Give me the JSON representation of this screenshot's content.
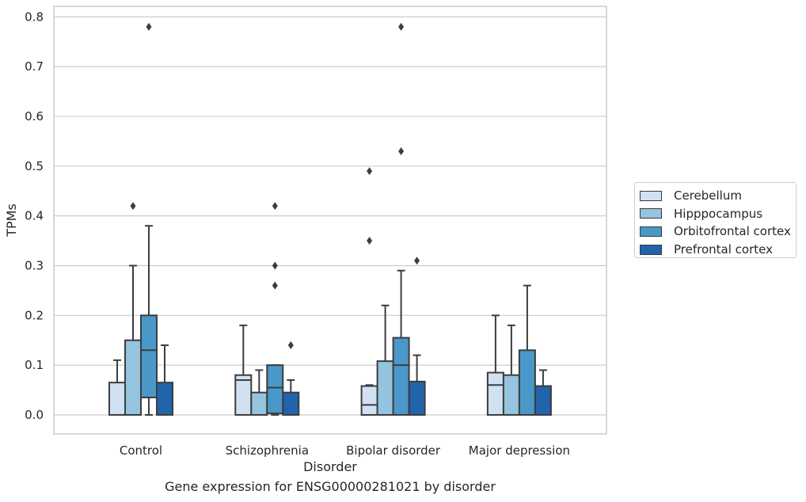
{
  "chart_data": {
    "type": "box",
    "caption": "Gene expression for ENSG00000281021 by disorder",
    "xlabel": "Disorder",
    "ylabel": "TPMs",
    "ylim": [
      -0.038,
      0.82
    ],
    "yticks": [
      0.0,
      0.1,
      0.2,
      0.3,
      0.4,
      0.5,
      0.6,
      0.7,
      0.8
    ],
    "ytick_labels": [
      "0.0",
      "0.1",
      "0.2",
      "0.3",
      "0.4",
      "0.5",
      "0.6",
      "0.7",
      "0.8"
    ],
    "grid": true,
    "legend_position": "right",
    "categories": [
      "Control",
      "Schizophrenia",
      "Bipolar disorder",
      "Major depression"
    ],
    "series": [
      {
        "name": "Cerebellum",
        "color": "#d0e1f2",
        "boxes": [
          {
            "whislo": 0.0,
            "q1": 0.0,
            "med": 0.0,
            "q3": 0.065,
            "whishi": 0.11,
            "fliers": []
          },
          {
            "whislo": 0.0,
            "q1": 0.0,
            "med": 0.07,
            "q3": 0.08,
            "whishi": 0.18,
            "fliers": []
          },
          {
            "whislo": 0.0,
            "q1": 0.0,
            "med": 0.02,
            "q3": 0.058,
            "whishi": 0.06,
            "fliers": [
              0.35,
              0.49
            ]
          },
          {
            "whislo": 0.0,
            "q1": 0.0,
            "med": 0.06,
            "q3": 0.085,
            "whishi": 0.2,
            "fliers": []
          }
        ]
      },
      {
        "name": "Hipppocampus",
        "color": "#94c4df",
        "boxes": [
          {
            "whislo": 0.0,
            "q1": 0.0,
            "med": 0.0,
            "q3": 0.15,
            "whishi": 0.3,
            "fliers": [
              0.42
            ]
          },
          {
            "whislo": 0.0,
            "q1": 0.0,
            "med": 0.0,
            "q3": 0.045,
            "whishi": 0.09,
            "fliers": []
          },
          {
            "whislo": 0.0,
            "q1": 0.0,
            "med": 0.0,
            "q3": 0.108,
            "whishi": 0.22,
            "fliers": []
          },
          {
            "whislo": 0.0,
            "q1": 0.0,
            "med": 0.0,
            "q3": 0.08,
            "whishi": 0.18,
            "fliers": []
          }
        ]
      },
      {
        "name": "Orbitofrontal cortex",
        "color": "#4a98c9",
        "boxes": [
          {
            "whislo": 0.0,
            "q1": 0.035,
            "med": 0.13,
            "q3": 0.2,
            "whishi": 0.38,
            "fliers": [
              0.78
            ]
          },
          {
            "whislo": 0.0,
            "q1": 0.003,
            "med": 0.055,
            "q3": 0.1,
            "whishi": 0.1,
            "fliers": [
              0.26,
              0.3,
              0.42
            ]
          },
          {
            "whislo": 0.0,
            "q1": 0.0,
            "med": 0.1,
            "q3": 0.155,
            "whishi": 0.29,
            "fliers": [
              0.53,
              0.78
            ]
          },
          {
            "whislo": 0.0,
            "q1": 0.0,
            "med": 0.0,
            "q3": 0.13,
            "whishi": 0.26,
            "fliers": []
          }
        ]
      },
      {
        "name": "Prefrontal cortex",
        "color": "#2164ab",
        "boxes": [
          {
            "whislo": 0.0,
            "q1": 0.0,
            "med": 0.0,
            "q3": 0.065,
            "whishi": 0.14,
            "fliers": []
          },
          {
            "whislo": 0.0,
            "q1": 0.0,
            "med": 0.0,
            "q3": 0.045,
            "whishi": 0.07,
            "fliers": [
              0.14
            ]
          },
          {
            "whislo": 0.0,
            "q1": 0.0,
            "med": 0.0,
            "q3": 0.067,
            "whishi": 0.12,
            "fliers": [
              0.31
            ]
          },
          {
            "whislo": 0.0,
            "q1": 0.0,
            "med": 0.0,
            "q3": 0.058,
            "whishi": 0.09,
            "fliers": []
          }
        ]
      }
    ]
  }
}
